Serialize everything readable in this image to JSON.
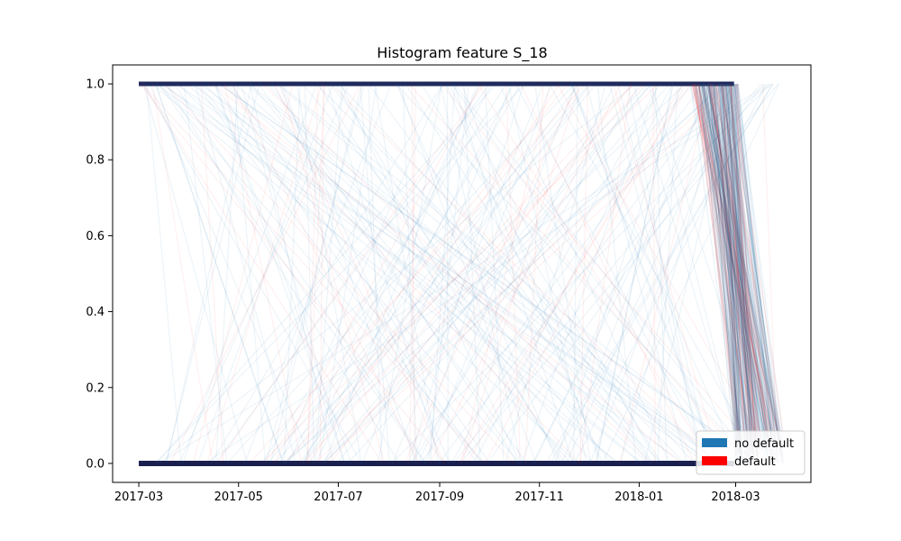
{
  "chart_data": {
    "type": "line",
    "title": "Histogram feature S_18",
    "xlabel": "",
    "ylabel": "",
    "x_ticks": [
      "2017-03",
      "2017-05",
      "2017-07",
      "2017-09",
      "2017-11",
      "2018-01",
      "2018-03"
    ],
    "y_ticks": [
      "0.0",
      "0.2",
      "0.4",
      "0.6",
      "0.8",
      "1.0"
    ],
    "xlim": [
      "2017-02-13",
      "2018-04-16"
    ],
    "ylim": [
      -0.05,
      1.05
    ],
    "grid": false,
    "legend": {
      "placement": "lower-right",
      "items": [
        {
          "label": "no default",
          "color": "#1f77b4"
        },
        {
          "label": "default",
          "color": "#ff0000"
        }
      ]
    },
    "series": [
      {
        "name": "no default",
        "color": "#1f77b4",
        "values_observed": [
          0,
          1
        ],
        "date_range": [
          "2017-03-01",
          "2018-03-31"
        ],
        "description_levels": {
          "low": 0.0,
          "high": 1.0
        }
      },
      {
        "name": "default",
        "color": "#ff0000",
        "values_observed": [
          0,
          1
        ],
        "date_range": [
          "2017-03-01",
          "2018-03-31"
        ],
        "description_levels": {
          "low": 0.0,
          "high": 1.0
        }
      }
    ]
  }
}
